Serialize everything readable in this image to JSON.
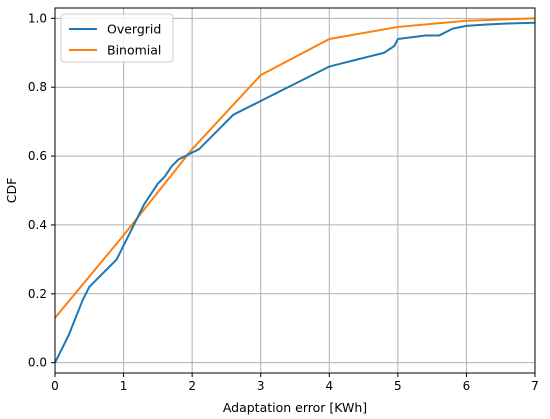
{
  "chart_data": {
    "type": "line",
    "title": "",
    "xlabel": "Adaptation error [KWh]",
    "ylabel": "CDF",
    "xlim": [
      0,
      7
    ],
    "ylim": [
      -0.03,
      1.03
    ],
    "xticks": [
      0,
      1,
      2,
      3,
      4,
      5,
      6,
      7
    ],
    "xtick_labels": [
      "0",
      "1",
      "2",
      "3",
      "4",
      "5",
      "6",
      "7"
    ],
    "yticks": [
      0.0,
      0.2,
      0.4,
      0.6,
      0.8,
      1.0
    ],
    "ytick_labels": [
      "0.0",
      "0.2",
      "0.4",
      "0.6",
      "0.8",
      "1.0"
    ],
    "grid": true,
    "legend_position": "top-left",
    "series": [
      {
        "name": "Overgrid",
        "color": "#1f77b4",
        "x": [
          0,
          0.05,
          0.1,
          0.2,
          0.3,
          0.4,
          0.5,
          0.6,
          0.7,
          0.8,
          0.9,
          1.0,
          1.1,
          1.2,
          1.3,
          1.4,
          1.5,
          1.6,
          1.7,
          1.8,
          1.9,
          2.0,
          2.1,
          2.2,
          2.3,
          2.4,
          2.5,
          2.6,
          2.7,
          2.8,
          2.9,
          3.0,
          3.1,
          3.2,
          3.3,
          3.5,
          3.7,
          3.9,
          4.0,
          4.2,
          4.4,
          4.6,
          4.8,
          4.95,
          5.0,
          5.2,
          5.4,
          5.6,
          5.8,
          6.0,
          6.3,
          6.6,
          7.0
        ],
        "y": [
          0.0,
          0.02,
          0.04,
          0.08,
          0.13,
          0.18,
          0.22,
          0.24,
          0.26,
          0.28,
          0.3,
          0.34,
          0.38,
          0.42,
          0.46,
          0.49,
          0.52,
          0.54,
          0.57,
          0.59,
          0.6,
          0.61,
          0.62,
          0.64,
          0.66,
          0.68,
          0.7,
          0.72,
          0.73,
          0.74,
          0.75,
          0.76,
          0.77,
          0.78,
          0.79,
          0.81,
          0.83,
          0.85,
          0.86,
          0.87,
          0.88,
          0.89,
          0.9,
          0.92,
          0.94,
          0.945,
          0.95,
          0.95,
          0.97,
          0.978,
          0.982,
          0.985,
          0.987
        ]
      },
      {
        "name": "Binomial",
        "color": "#ff7f0e",
        "x": [
          0,
          1,
          2,
          3,
          4,
          5,
          6,
          7
        ],
        "y": [
          0.13,
          0.37,
          0.62,
          0.835,
          0.94,
          0.975,
          0.993,
          1.0
        ]
      }
    ]
  }
}
